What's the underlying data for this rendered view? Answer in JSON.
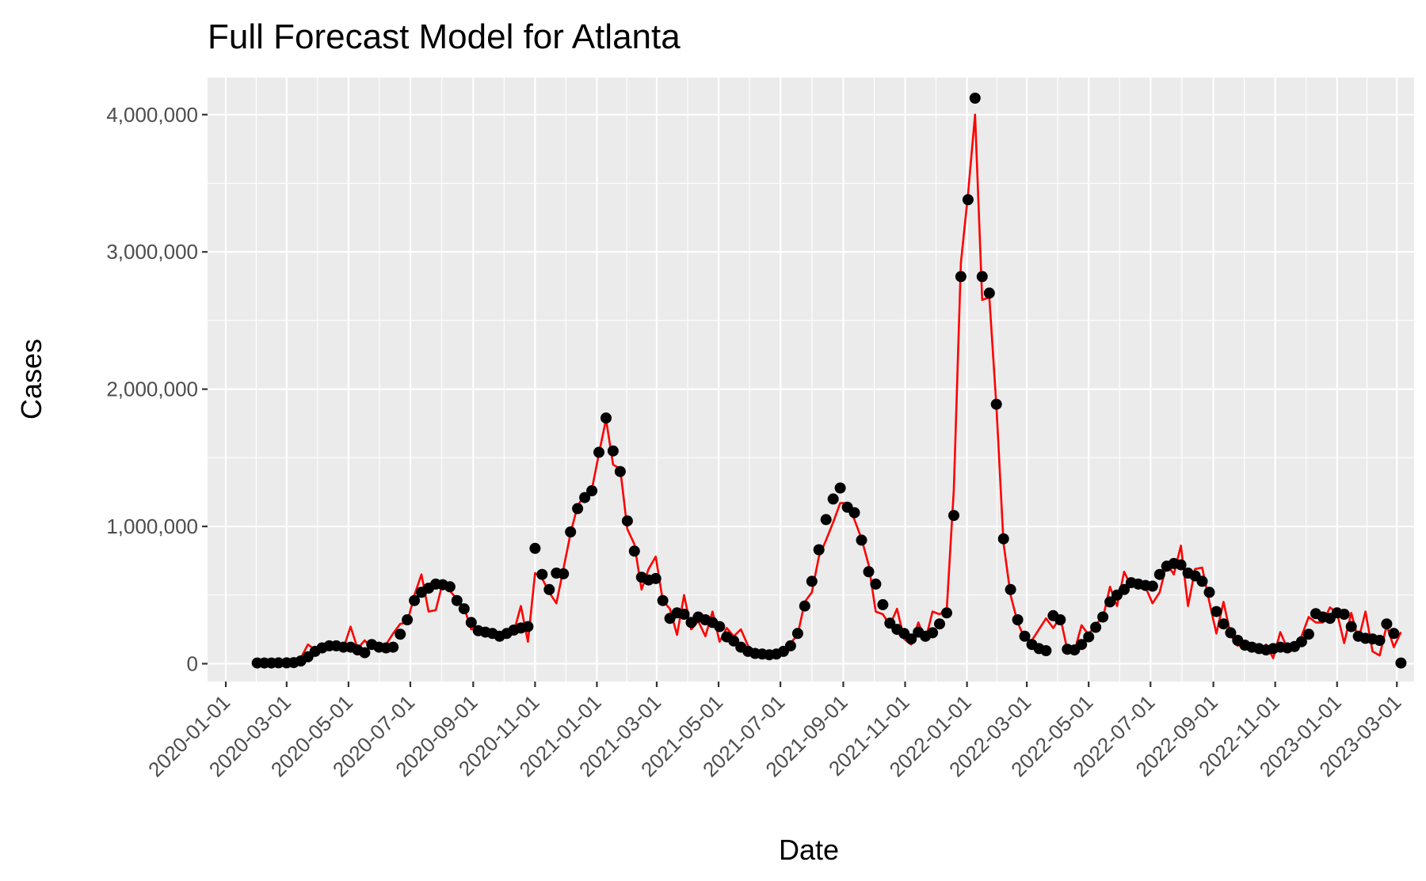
{
  "chart_data": {
    "type": "line",
    "title": "Full Forecast Model for Atlanta",
    "xlabel": "Date",
    "ylabel": "Cases",
    "x_is_date": true,
    "xlim": [
      "2019-12-14",
      "2023-03-18"
    ],
    "ylim": [
      -130000,
      4270000
    ],
    "grid": true,
    "legend": "none",
    "x_ticks": [
      "2020-01-01",
      "2020-03-01",
      "2020-05-01",
      "2020-07-01",
      "2020-09-01",
      "2020-11-01",
      "2021-01-01",
      "2021-03-01",
      "2021-05-01",
      "2021-07-01",
      "2021-09-01",
      "2021-11-01",
      "2022-01-01",
      "2022-03-01",
      "2022-05-01",
      "2022-07-01",
      "2022-09-01",
      "2022-11-01",
      "2023-01-01",
      "2023-03-01"
    ],
    "y_ticks": [
      0,
      1000000,
      2000000,
      3000000,
      4000000
    ],
    "y_tick_labels": [
      "0",
      "1,000,000",
      "2,000,000",
      "3,000,000",
      "4,000,000"
    ],
    "colors": {
      "line": "#ff0000",
      "points": "#000000",
      "panel": "#ebebeb",
      "grid": "#ffffff"
    },
    "series": [
      {
        "kind": "points",
        "color": "#000000",
        "x": [
          "2020-02-01",
          "2020-02-08",
          "2020-02-15",
          "2020-02-22",
          "2020-03-01",
          "2020-03-08",
          "2020-03-15",
          "2020-03-22",
          "2020-03-29",
          "2020-04-05",
          "2020-04-12",
          "2020-04-19",
          "2020-04-26",
          "2020-05-03",
          "2020-05-10",
          "2020-05-17",
          "2020-05-24",
          "2020-05-31",
          "2020-06-07",
          "2020-06-14",
          "2020-06-21",
          "2020-06-28",
          "2020-07-05",
          "2020-07-12",
          "2020-07-19",
          "2020-07-26",
          "2020-08-02",
          "2020-08-09",
          "2020-08-16",
          "2020-08-23",
          "2020-08-30",
          "2020-09-06",
          "2020-09-13",
          "2020-09-20",
          "2020-09-27",
          "2020-10-04",
          "2020-10-11",
          "2020-10-18",
          "2020-10-25",
          "2020-11-01",
          "2020-11-08",
          "2020-11-15",
          "2020-11-22",
          "2020-11-29",
          "2020-12-06",
          "2020-12-13",
          "2020-12-20",
          "2020-12-27",
          "2021-01-03",
          "2021-01-10",
          "2021-01-17",
          "2021-01-24",
          "2021-01-31",
          "2021-02-07",
          "2021-02-14",
          "2021-02-21",
          "2021-02-28",
          "2021-03-07",
          "2021-03-14",
          "2021-03-21",
          "2021-03-28",
          "2021-04-04",
          "2021-04-11",
          "2021-04-18",
          "2021-04-25",
          "2021-05-02",
          "2021-05-09",
          "2021-05-16",
          "2021-05-23",
          "2021-05-30",
          "2021-06-06",
          "2021-06-13",
          "2021-06-20",
          "2021-06-27",
          "2021-07-04",
          "2021-07-11",
          "2021-07-18",
          "2021-07-25",
          "2021-08-01",
          "2021-08-08",
          "2021-08-15",
          "2021-08-22",
          "2021-08-29",
          "2021-09-05",
          "2021-09-12",
          "2021-09-19",
          "2021-09-26",
          "2021-10-03",
          "2021-10-10",
          "2021-10-17",
          "2021-10-24",
          "2021-10-31",
          "2021-11-07",
          "2021-11-14",
          "2021-11-21",
          "2021-11-28",
          "2021-12-05",
          "2021-12-12",
          "2021-12-19",
          "2021-12-26",
          "2022-01-02",
          "2022-01-09",
          "2022-01-16",
          "2022-01-23",
          "2022-01-30",
          "2022-02-06",
          "2022-02-13",
          "2022-02-20",
          "2022-02-27",
          "2022-03-06",
          "2022-03-13",
          "2022-03-20",
          "2022-03-27",
          "2022-04-03",
          "2022-04-10",
          "2022-04-17",
          "2022-04-24",
          "2022-05-01",
          "2022-05-08",
          "2022-05-15",
          "2022-05-22",
          "2022-05-29",
          "2022-06-05",
          "2022-06-12",
          "2022-06-19",
          "2022-06-26",
          "2022-07-03",
          "2022-07-10",
          "2022-07-17",
          "2022-07-24",
          "2022-07-31",
          "2022-08-07",
          "2022-08-14",
          "2022-08-21",
          "2022-08-28",
          "2022-09-04",
          "2022-09-11",
          "2022-09-18",
          "2022-09-25",
          "2022-10-02",
          "2022-10-09",
          "2022-10-16",
          "2022-10-23",
          "2022-10-30",
          "2022-11-06",
          "2022-11-13",
          "2022-11-20",
          "2022-11-27",
          "2022-12-04",
          "2022-12-11",
          "2022-12-18",
          "2022-12-25",
          "2023-01-01",
          "2023-01-08",
          "2023-01-15",
          "2023-01-22",
          "2023-01-29",
          "2023-02-05",
          "2023-02-12",
          "2023-02-19",
          "2023-02-26",
          "2023-03-05"
        ],
        "y": [
          5000,
          5000,
          5000,
          6000,
          6000,
          8000,
          20000,
          50000,
          90000,
          115000,
          130000,
          130000,
          120000,
          120000,
          100000,
          80000,
          140000,
          120000,
          115000,
          120000,
          215000,
          320000,
          460000,
          520000,
          550000,
          580000,
          575000,
          560000,
          460000,
          400000,
          300000,
          240000,
          230000,
          220000,
          200000,
          220000,
          245000,
          260000,
          270000,
          840000,
          650000,
          540000,
          660000,
          655000,
          960000,
          1130000,
          1210000,
          1260000,
          1540000,
          1790000,
          1550000,
          1400000,
          1040000,
          820000,
          630000,
          610000,
          620000,
          460000,
          330000,
          370000,
          360000,
          300000,
          340000,
          320000,
          300000,
          270000,
          195000,
          165000,
          120000,
          90000,
          75000,
          70000,
          65000,
          70000,
          90000,
          130000,
          220000,
          420000,
          600000,
          830000,
          1050000,
          1200000,
          1280000,
          1140000,
          1100000,
          900000,
          670000,
          580000,
          430000,
          295000,
          250000,
          220000,
          180000,
          230000,
          200000,
          225000,
          290000,
          370000,
          1080000,
          2820000,
          3380000,
          4120000,
          2820000,
          2700000,
          1890000,
          910000,
          540000,
          320000,
          200000,
          140000,
          110000,
          95000,
          350000,
          320000,
          105000,
          100000,
          140000,
          195000,
          265000,
          340000,
          450000,
          500000,
          540000,
          590000,
          580000,
          570000,
          565000,
          650000,
          710000,
          730000,
          720000,
          660000,
          640000,
          600000,
          520000,
          380000,
          290000,
          225000,
          170000,
          135000,
          120000,
          110000,
          100000,
          110000,
          120000,
          115000,
          125000,
          160000,
          215000,
          365000,
          340000,
          330000,
          370000,
          360000,
          270000,
          200000,
          185000,
          180000,
          170000,
          290000,
          220000,
          5000
        ]
      },
      {
        "kind": "line",
        "color": "#ff0000",
        "x": [
          "2020-02-01",
          "2020-02-08",
          "2020-02-15",
          "2020-02-22",
          "2020-03-01",
          "2020-03-08",
          "2020-03-15",
          "2020-03-22",
          "2020-03-29",
          "2020-04-05",
          "2020-04-12",
          "2020-04-19",
          "2020-04-26",
          "2020-05-03",
          "2020-05-10",
          "2020-05-17",
          "2020-05-24",
          "2020-05-31",
          "2020-06-07",
          "2020-06-14",
          "2020-06-21",
          "2020-06-28",
          "2020-07-05",
          "2020-07-12",
          "2020-07-19",
          "2020-07-26",
          "2020-08-02",
          "2020-08-09",
          "2020-08-16",
          "2020-08-23",
          "2020-08-30",
          "2020-09-06",
          "2020-09-13",
          "2020-09-20",
          "2020-09-27",
          "2020-10-04",
          "2020-10-11",
          "2020-10-18",
          "2020-10-25",
          "2020-11-01",
          "2020-11-08",
          "2020-11-15",
          "2020-11-22",
          "2020-11-29",
          "2020-12-06",
          "2020-12-13",
          "2020-12-20",
          "2020-12-27",
          "2021-01-03",
          "2021-01-10",
          "2021-01-17",
          "2021-01-24",
          "2021-01-31",
          "2021-02-07",
          "2021-02-14",
          "2021-02-21",
          "2021-02-28",
          "2021-03-07",
          "2021-03-14",
          "2021-03-21",
          "2021-03-28",
          "2021-04-04",
          "2021-04-11",
          "2021-04-18",
          "2021-04-25",
          "2021-05-02",
          "2021-05-09",
          "2021-05-16",
          "2021-05-23",
          "2021-05-30",
          "2021-06-06",
          "2021-06-13",
          "2021-06-20",
          "2021-06-27",
          "2021-07-04",
          "2021-07-11",
          "2021-07-18",
          "2021-07-25",
          "2021-08-01",
          "2021-08-08",
          "2021-08-15",
          "2021-08-22",
          "2021-08-29",
          "2021-09-05",
          "2021-09-12",
          "2021-09-19",
          "2021-09-26",
          "2021-10-03",
          "2021-10-10",
          "2021-10-17",
          "2021-10-24",
          "2021-10-31",
          "2021-11-07",
          "2021-11-14",
          "2021-11-21",
          "2021-11-28",
          "2021-12-05",
          "2021-12-12",
          "2021-12-19",
          "2021-12-26",
          "2022-01-02",
          "2022-01-09",
          "2022-01-16",
          "2022-01-23",
          "2022-01-30",
          "2022-02-06",
          "2022-02-13",
          "2022-02-20",
          "2022-02-27",
          "2022-03-06",
          "2022-03-13",
          "2022-03-20",
          "2022-03-27",
          "2022-04-03",
          "2022-04-10",
          "2022-04-17",
          "2022-04-24",
          "2022-05-01",
          "2022-05-08",
          "2022-05-15",
          "2022-05-22",
          "2022-05-29",
          "2022-06-05",
          "2022-06-12",
          "2022-06-19",
          "2022-06-26",
          "2022-07-03",
          "2022-07-10",
          "2022-07-17",
          "2022-07-24",
          "2022-07-31",
          "2022-08-07",
          "2022-08-14",
          "2022-08-21",
          "2022-08-28",
          "2022-09-04",
          "2022-09-11",
          "2022-09-18",
          "2022-09-25",
          "2022-10-02",
          "2022-10-09",
          "2022-10-16",
          "2022-10-23",
          "2022-10-30",
          "2022-11-06",
          "2022-11-13",
          "2022-11-20",
          "2022-11-27",
          "2022-12-04",
          "2022-12-11",
          "2022-12-18",
          "2022-12-25",
          "2023-01-01",
          "2023-01-08",
          "2023-01-15",
          "2023-01-22",
          "2023-01-29",
          "2023-02-05",
          "2023-02-12",
          "2023-02-19",
          "2023-02-26",
          "2023-03-05"
        ],
        "y": [
          5000,
          5000,
          5000,
          6000,
          7000,
          10000,
          40000,
          140000,
          100000,
          140000,
          120000,
          130000,
          110000,
          270000,
          110000,
          170000,
          110000,
          130000,
          140000,
          220000,
          290000,
          300000,
          500000,
          650000,
          380000,
          390000,
          590000,
          530000,
          470000,
          410000,
          250000,
          260000,
          210000,
          240000,
          180000,
          250000,
          230000,
          420000,
          160000,
          660000,
          620000,
          520000,
          440000,
          690000,
          950000,
          1150000,
          1230000,
          1270000,
          1530000,
          1780000,
          1450000,
          1420000,
          980000,
          870000,
          540000,
          690000,
          780000,
          460000,
          400000,
          210000,
          500000,
          250000,
          310000,
          200000,
          380000,
          160000,
          260000,
          200000,
          250000,
          130000,
          90000,
          70000,
          60000,
          60000,
          70000,
          150000,
          210000,
          450000,
          520000,
          780000,
          900000,
          1030000,
          1170000,
          1170000,
          1050000,
          910000,
          720000,
          380000,
          360000,
          280000,
          400000,
          180000,
          140000,
          300000,
          170000,
          380000,
          360000,
          390000,
          1270000,
          2920000,
          3420000,
          4000000,
          2650000,
          2670000,
          1880000,
          880000,
          500000,
          300000,
          180000,
          170000,
          250000,
          330000,
          260000,
          340000,
          100000,
          90000,
          280000,
          210000,
          290000,
          330000,
          560000,
          420000,
          670000,
          560000,
          580000,
          560000,
          440000,
          520000,
          730000,
          650000,
          860000,
          420000,
          690000,
          700000,
          450000,
          220000,
          450000,
          210000,
          130000,
          160000,
          100000,
          80000,
          140000,
          40000,
          230000,
          110000,
          120000,
          200000,
          340000,
          300000,
          300000,
          410000,
          370000,
          150000,
          370000,
          170000,
          380000,
          90000,
          60000,
          280000,
          120000,
          230000
        ]
      }
    ]
  }
}
